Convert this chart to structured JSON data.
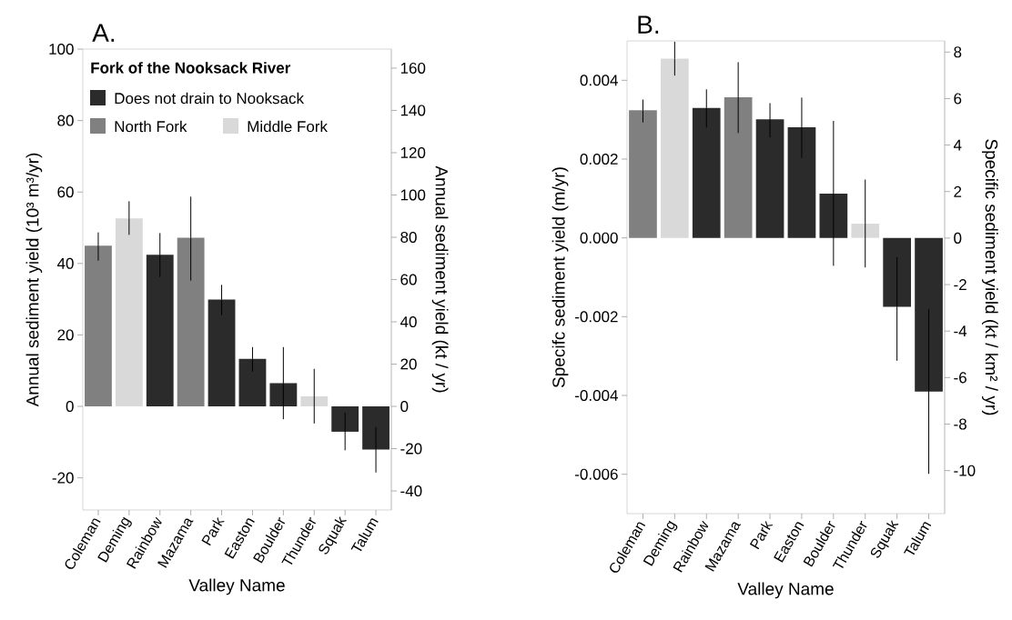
{
  "chart_data": [
    {
      "type": "bar",
      "title": "A.",
      "xlabel": "Valley Name",
      "ylabel": "Annual sediment yield (10³ m³/yr)",
      "y2label": "Annual sediment yield (kt / yr)",
      "legend_title": "Fork of the Nooksack River",
      "legend": "top left",
      "categories": [
        "Coleman",
        "Deming",
        "Rainbow",
        "Mazama",
        "Park",
        "Easton",
        "Boulder",
        "Thunder",
        "Squak",
        "Talum"
      ],
      "series": [
        {
          "name": "Does not drain to Nooksack",
          "color": "#2b2b2b",
          "values": [
            null,
            null,
            42.4,
            null,
            29.9,
            13.3,
            6.5,
            null,
            -7.1,
            -12.1
          ],
          "errors": [
            null,
            null,
            [
              36.2,
              48.5
            ],
            null,
            [
              25.5,
              34
            ],
            [
              9.7,
              16.6
            ],
            [
              -3.6,
              16.6
            ],
            null,
            [
              -12.3,
              -1.7
            ],
            [
              -18.5,
              -5.8
            ]
          ]
        },
        {
          "name": "North Fork",
          "color": "#808080",
          "values": [
            45,
            null,
            null,
            47.2,
            null,
            null,
            null,
            null,
            null,
            null
          ],
          "errors": [
            [
              40.8,
              48.7
            ],
            null,
            null,
            [
              35.2,
              58.7
            ],
            null,
            null,
            null,
            null,
            null,
            null
          ]
        },
        {
          "name": "Middle Fork",
          "color": "#d9d9d9",
          "values": [
            null,
            52.6,
            null,
            null,
            null,
            null,
            null,
            2.8,
            null,
            null
          ],
          "errors": [
            null,
            [
              48,
              57.4
            ],
            null,
            null,
            null,
            null,
            null,
            [
              -4.8,
              10.5
            ],
            null,
            null
          ]
        }
      ],
      "ylim": [
        -29,
        100
      ],
      "yticks": [
        -20,
        0,
        20,
        40,
        60,
        80,
        100
      ],
      "y2lim": [
        -49,
        169
      ],
      "y2ticks": [
        -40,
        -20,
        0,
        20,
        40,
        60,
        80,
        100,
        120,
        140,
        160
      ]
    },
    {
      "type": "bar",
      "title": "B.",
      "xlabel": "Valley Name",
      "ylabel": "Specifc sediment yield (m/yr)",
      "y2label": "Specific sediment yield (kt / km² / yr)",
      "categories": [
        "Coleman",
        "Deming",
        "Rainbow",
        "Mazama",
        "Park",
        "Easton",
        "Boulder",
        "Thunder",
        "Squak",
        "Talum"
      ],
      "series": [
        {
          "color": "#2b2b2b",
          "values": [
            null,
            null,
            0.0033,
            null,
            0.00301,
            0.00281,
            0.00112,
            null,
            -0.00175,
            -0.0039
          ],
          "errors": [
            null,
            null,
            [
              0.0028,
              0.00377
            ],
            null,
            [
              0.00255,
              0.00342
            ],
            [
              0.00203,
              0.00356
            ],
            [
              -0.00071,
              0.00297
            ],
            null,
            [
              -0.00312,
              -0.00049
            ],
            [
              -0.00599,
              -0.00181
            ]
          ]
        },
        {
          "color": "#808080",
          "values": [
            0.00324,
            null,
            null,
            0.00357,
            null,
            null,
            null,
            null,
            null,
            null
          ],
          "errors": [
            [
              0.00293,
              0.00351
            ],
            null,
            null,
            [
              0.00266,
              0.00446
            ],
            null,
            null,
            null,
            null,
            null,
            null
          ]
        },
        {
          "color": "#d9d9d9",
          "values": [
            null,
            0.00455,
            null,
            null,
            null,
            null,
            null,
            0.00036,
            null,
            null
          ],
          "errors": [
            null,
            [
              0.00412,
              0.00498
            ],
            null,
            null,
            null,
            null,
            null,
            [
              -0.00075,
              0.00148
            ],
            null,
            null
          ]
        }
      ],
      "ylim": [
        -0.007,
        0.005
      ],
      "yticks": [
        {
          "value": -0.006,
          "label": "-0.006"
        },
        {
          "value": -0.004,
          "label": "-0.004"
        },
        {
          "value": -0.002,
          "label": "-0.002"
        },
        {
          "value": 0,
          "label": "0.000"
        },
        {
          "value": 0.002,
          "label": "0.002"
        },
        {
          "value": 0.004,
          "label": "0.004"
        }
      ],
      "y2lim": [
        -11.85,
        8.48
      ],
      "y2ticks": [
        -10,
        -8,
        -6,
        -4,
        -2,
        0,
        2,
        4,
        6,
        8
      ]
    }
  ]
}
